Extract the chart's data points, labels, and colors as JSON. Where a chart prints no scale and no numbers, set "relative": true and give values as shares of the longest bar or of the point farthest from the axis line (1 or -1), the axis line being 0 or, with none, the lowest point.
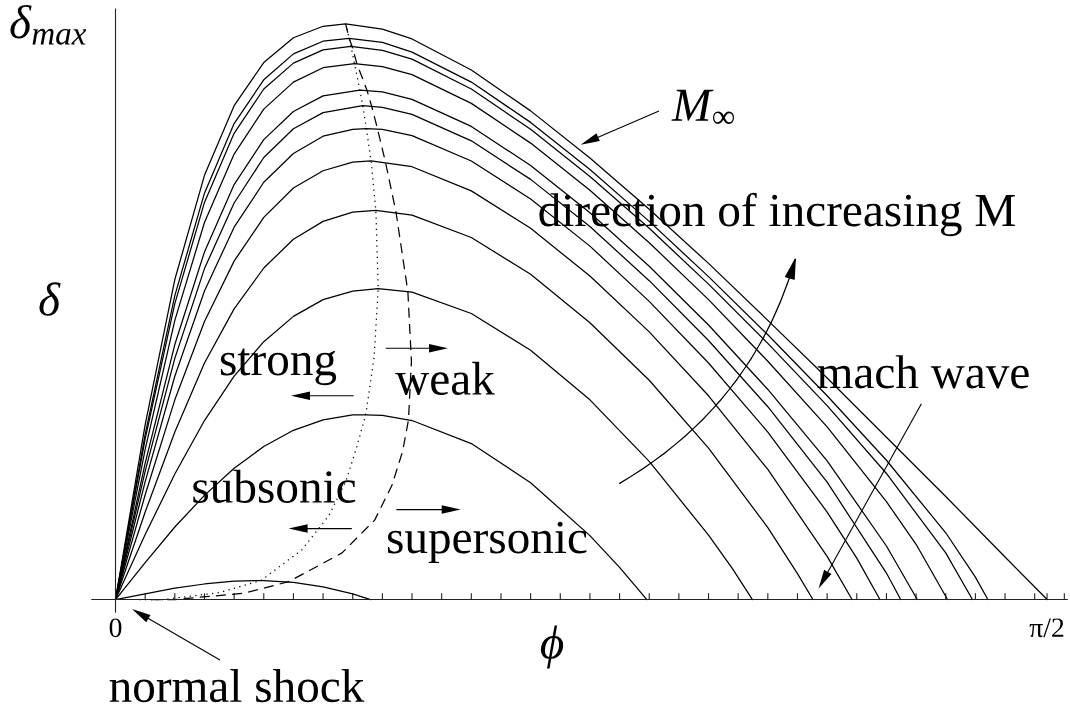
{
  "chart_data": {
    "type": "line",
    "xlabel": "ϕ",
    "ylabel": "δ",
    "relative": true,
    "xlim": [
      -0.04,
      1.605
    ],
    "xticks": [
      0,
      {
        "value": 0.05,
        "label": null
      },
      {
        "value": 0.1,
        "label": null
      },
      {
        "value": 0.15,
        "label": null
      },
      {
        "value": 0.2,
        "label": null
      },
      {
        "value": 0.25,
        "label": null
      },
      {
        "value": 0.3,
        "label": null
      },
      {
        "value": 0.35,
        "label": null
      },
      {
        "value": 0.4,
        "label": null
      },
      {
        "value": 0.45,
        "label": null
      },
      {
        "value": 0.5,
        "label": null
      },
      {
        "value": 0.55,
        "label": null
      },
      {
        "value": 0.6,
        "label": null
      },
      {
        "value": 0.65,
        "label": null
      },
      {
        "value": 0.7,
        "label": null
      },
      {
        "value": 0.75,
        "label": null
      },
      {
        "value": 0.8,
        "label": null
      },
      {
        "value": 0.85,
        "label": null
      },
      {
        "value": 0.9,
        "label": null
      },
      {
        "value": 0.95,
        "label": null
      },
      {
        "value": 1.0,
        "label": null
      },
      {
        "value": 1.05,
        "label": null
      },
      {
        "value": 1.1,
        "label": null
      },
      {
        "value": 1.15,
        "label": null
      },
      {
        "value": 1.2,
        "label": null
      },
      {
        "value": 1.25,
        "label": null
      },
      {
        "value": 1.3,
        "label": null
      },
      {
        "value": 1.35,
        "label": null
      },
      {
        "value": 1.4,
        "label": null
      },
      {
        "value": 1.45,
        "label": null
      },
      {
        "value": 1.5,
        "label": null
      },
      {
        "value": 1.55,
        "label": null
      },
      {
        "value": 1.5708,
        "label": "π/2"
      },
      {
        "value": 1.6,
        "label": null
      }
    ],
    "annotations": [
      "δ$_{max}$",
      "M$_{∞}$",
      "direction of increasing M",
      "mach wave",
      "strong",
      "weak",
      "subsonic",
      "supersonic",
      {
        "text": "normal shock",
        "x": 0,
        "y": 0
      }
    ],
    "series": [
      {
        "color": "#000000",
        "x": [
          0,
          0.05,
          0.1,
          0.15,
          0.2,
          0.25,
          0.3,
          0.35,
          0.4,
          0.43
        ],
        "values": [
          0,
          0.01,
          0.02,
          0.027,
          0.032,
          0.033,
          0.03,
          0.022,
          0.01,
          0
        ]
      },
      {
        "color": "#000000",
        "x": [
          0,
          0.05,
          0.1,
          0.15,
          0.2,
          0.25,
          0.3,
          0.35,
          0.4,
          0.422,
          0.45,
          0.5,
          0.6,
          0.7,
          0.8,
          0.85,
          0.896
        ],
        "values": [
          0,
          0.064,
          0.126,
          0.181,
          0.228,
          0.266,
          0.294,
          0.312,
          0.321,
          0.321,
          0.32,
          0.311,
          0.271,
          0.203,
          0.111,
          0.056,
          0
        ]
      },
      {
        "color": "#000000",
        "x": [
          0,
          0.05,
          0.1,
          0.15,
          0.2,
          0.25,
          0.3,
          0.35,
          0.4,
          0.443,
          0.5,
          0.6,
          0.7,
          0.8,
          0.9,
          1.0,
          1.04,
          1.074
        ],
        "values": [
          0,
          0.113,
          0.218,
          0.311,
          0.388,
          0.448,
          0.492,
          0.521,
          0.536,
          0.54,
          0.534,
          0.497,
          0.433,
          0.347,
          0.24,
          0.112,
          0.054,
          0
        ]
      },
      {
        "color": "#000000",
        "x": [
          0,
          0.05,
          0.1,
          0.15,
          0.2,
          0.25,
          0.3,
          0.35,
          0.4,
          0.439,
          0.5,
          0.6,
          0.7,
          0.8,
          0.9,
          1.0,
          1.1,
          1.15,
          1.176
        ],
        "values": [
          0,
          0.152,
          0.291,
          0.411,
          0.505,
          0.576,
          0.626,
          0.657,
          0.673,
          0.676,
          0.668,
          0.629,
          0.565,
          0.481,
          0.381,
          0.263,
          0.125,
          0.045,
          0
        ]
      },
      {
        "color": "#000000",
        "x": [
          0,
          0.05,
          0.1,
          0.15,
          0.2,
          0.25,
          0.3,
          0.35,
          0.4,
          0.431,
          0.5,
          0.6,
          0.7,
          0.8,
          0.9,
          1.0,
          1.1,
          1.2,
          1.242
        ],
        "values": [
          0,
          0.182,
          0.347,
          0.483,
          0.588,
          0.664,
          0.715,
          0.745,
          0.76,
          0.762,
          0.752,
          0.71,
          0.645,
          0.562,
          0.465,
          0.354,
          0.226,
          0.075,
          0
        ]
      },
      {
        "color": "#000000",
        "x": [
          0,
          0.05,
          0.1,
          0.15,
          0.2,
          0.25,
          0.3,
          0.35,
          0.4,
          0.423,
          0.45,
          0.5,
          0.6,
          0.7,
          0.8,
          0.9,
          1.0,
          1.1,
          1.2,
          1.25,
          1.289
        ],
        "values": [
          0,
          0.205,
          0.388,
          0.536,
          0.647,
          0.725,
          0.775,
          0.805,
          0.817,
          0.818,
          0.817,
          0.806,
          0.762,
          0.696,
          0.614,
          0.518,
          0.411,
          0.291,
          0.152,
          0.072,
          0
        ]
      },
      {
        "color": "#000000",
        "x": [
          0,
          0.05,
          0.1,
          0.15,
          0.2,
          0.25,
          0.3,
          0.35,
          0.417,
          0.45,
          0.5,
          0.6,
          0.7,
          0.8,
          0.9,
          1.0,
          1.1,
          1.2,
          1.3,
          1.324
        ],
        "values": [
          0,
          0.223,
          0.419,
          0.575,
          0.689,
          0.768,
          0.818,
          0.846,
          0.858,
          0.855,
          0.843,
          0.797,
          0.73,
          0.648,
          0.554,
          0.45,
          0.335,
          0.204,
          0.046,
          0
        ]
      },
      {
        "color": "#000000",
        "x": [
          0,
          0.05,
          0.1,
          0.15,
          0.2,
          0.25,
          0.3,
          0.35,
          0.412,
          0.45,
          0.5,
          0.6,
          0.7,
          0.8,
          0.9,
          1.0,
          1.1,
          1.2,
          1.3,
          1.352
        ],
        "values": [
          0,
          0.237,
          0.443,
          0.604,
          0.721,
          0.799,
          0.848,
          0.875,
          0.885,
          0.882,
          0.869,
          0.822,
          0.754,
          0.672,
          0.579,
          0.477,
          0.365,
          0.241,
          0.093,
          0
        ]
      },
      {
        "color": "#000000",
        "x": [
          0,
          0.05,
          0.1,
          0.15,
          0.2,
          0.25,
          0.3,
          0.35,
          0.403,
          0.45,
          0.5,
          0.6,
          0.7,
          0.8,
          0.9,
          1.0,
          1.1,
          1.2,
          1.3,
          1.35,
          1.403
        ],
        "values": [
          0,
          0.261,
          0.485,
          0.655,
          0.774,
          0.852,
          0.899,
          0.924,
          0.931,
          0.926,
          0.912,
          0.862,
          0.793,
          0.711,
          0.62,
          0.521,
          0.414,
          0.3,
          0.17,
          0.096,
          0
        ]
      },
      {
        "color": "#000000",
        "x": [
          0,
          0.05,
          0.1,
          0.15,
          0.2,
          0.25,
          0.3,
          0.35,
          0.397,
          0.45,
          0.5,
          0.6,
          0.7,
          0.8,
          0.9,
          1.0,
          1.1,
          1.2,
          1.3,
          1.4,
          1.445
        ],
        "values": [
          0,
          0.279,
          0.514,
          0.69,
          0.81,
          0.887,
          0.932,
          0.955,
          0.961,
          0.954,
          0.939,
          0.887,
          0.817,
          0.735,
          0.645,
          0.548,
          0.445,
          0.337,
          0.219,
          0.081,
          0
        ]
      },
      {
        "color": "#000000",
        "x": [
          0,
          0.05,
          0.1,
          0.15,
          0.2,
          0.25,
          0.3,
          0.35,
          0.394,
          0.45,
          0.5,
          0.6,
          0.7,
          0.8,
          0.9,
          1.0,
          1.1,
          1.2,
          1.3,
          1.4,
          1.45,
          1.471
        ],
        "values": [
          0,
          0.287,
          0.528,
          0.706,
          0.827,
          0.903,
          0.948,
          0.97,
          0.975,
          0.968,
          0.951,
          0.899,
          0.829,
          0.747,
          0.657,
          0.561,
          0.46,
          0.354,
          0.242,
          0.116,
          0.039,
          0
        ]
      },
      {
        "color": "#000000",
        "x": [
          0,
          0.05,
          0.1,
          0.15,
          0.2,
          0.25,
          0.3,
          0.35,
          0.388,
          0.45,
          0.5,
          0.6,
          0.7,
          0.8,
          0.9,
          1.0,
          1.1,
          1.2,
          1.3,
          1.4,
          1.5,
          1.571
        ],
        "values": [
          0,
          0.304,
          0.556,
          0.737,
          0.858,
          0.933,
          0.976,
          0.996,
          1,
          0.991,
          0.974,
          0.92,
          0.849,
          0.767,
          0.678,
          0.584,
          0.485,
          0.385,
          0.282,
          0.179,
          0.074,
          0
        ]
      },
      {
        "color": "#000000",
        "line_style": "dotted",
        "x": [
          0.04,
          0.08,
          0.175,
          0.245,
          0.314,
          0.36,
          0.389,
          0.407,
          0.422,
          0.436,
          0.443,
          0.439,
          0.431,
          0.423,
          0.417,
          0.412,
          0.403,
          0.397,
          0.394,
          0.388
        ],
        "values": [
          0,
          0,
          0.012,
          0.033,
          0.086,
          0.146,
          0.207,
          0.266,
          0.321,
          0.421,
          0.54,
          0.676,
          0.762,
          0.818,
          0.858,
          0.885,
          0.931,
          0.961,
          0.975,
          1
        ]
      },
      {
        "color": "#000000",
        "line_style": "dashed",
        "x": [
          0.06,
          0.1,
          0.216,
          0.292,
          0.382,
          0.437,
          0.466,
          0.484,
          0.494,
          0.499,
          0.493,
          0.473,
          0.455,
          0.442,
          0.432,
          0.424,
          0.407,
          0.399,
          0.394,
          0.388
        ],
        "values": [
          0,
          0,
          0.011,
          0.031,
          0.081,
          0.138,
          0.198,
          0.257,
          0.312,
          0.414,
          0.535,
          0.673,
          0.761,
          0.817,
          0.857,
          0.885,
          0.931,
          0.961,
          0.975,
          1
        ]
      }
    ]
  }
}
